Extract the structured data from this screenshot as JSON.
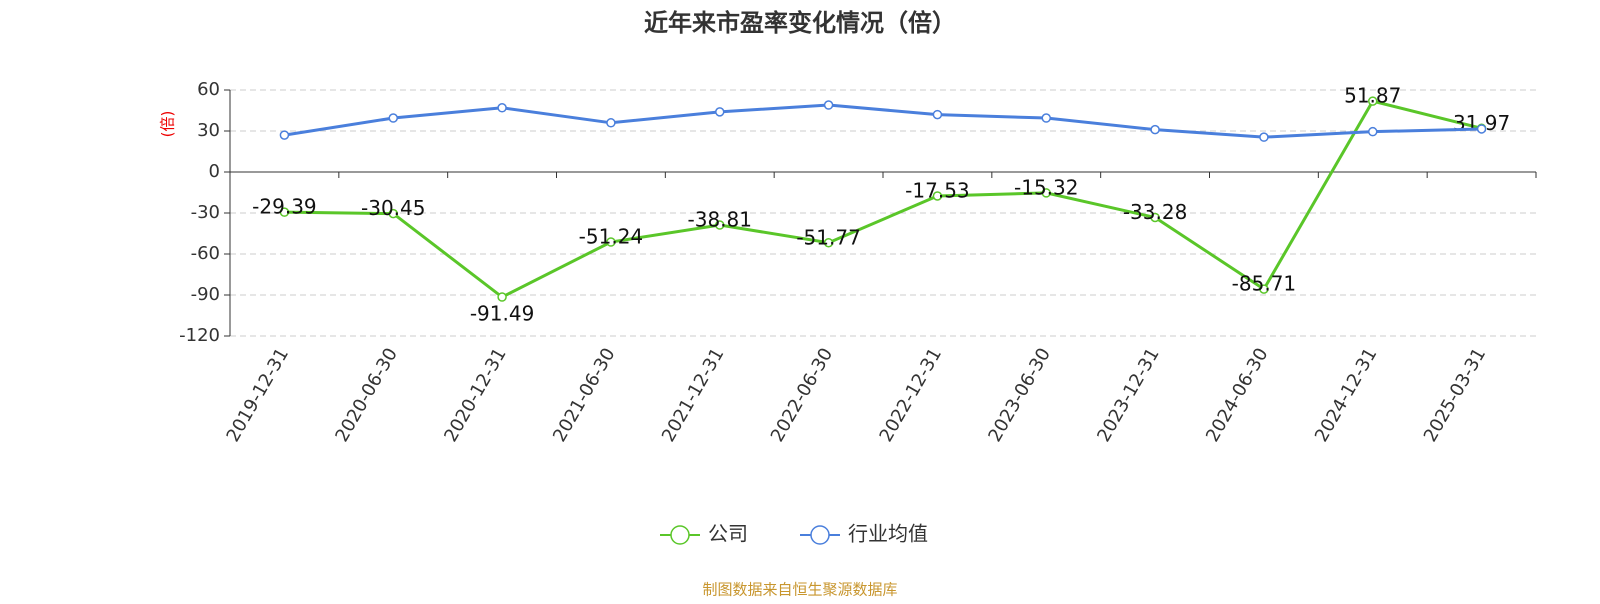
{
  "chart_data": {
    "type": "line",
    "title": "近年来市盈率变化情况（倍）",
    "y_label": "(倍)",
    "source": "制图数据来自恒生聚源数据库",
    "categories": [
      "2019-12-31",
      "2020-06-30",
      "2020-12-31",
      "2021-06-30",
      "2021-12-31",
      "2022-06-30",
      "2022-12-31",
      "2023-06-30",
      "2023-12-31",
      "2024-06-30",
      "2024-12-31",
      "2025-03-31"
    ],
    "series": [
      {
        "name": "公司",
        "color": "#5ac629",
        "values": [
          -29.39,
          -30.45,
          -91.49,
          -51.24,
          -38.81,
          -51.77,
          -17.53,
          -15.32,
          -33.28,
          -85.71,
          51.87,
          31.97
        ],
        "data_labels": true
      },
      {
        "name": "行业均值",
        "color": "#4a7fdc",
        "values": [
          27,
          39.5,
          47,
          36,
          44,
          49,
          42,
          39.5,
          31,
          25.5,
          29.5,
          31.5
        ],
        "data_labels": false
      }
    ],
    "ylim": [
      -120,
      60
    ],
    "yticks": [
      -120,
      -90,
      -60,
      -30,
      0,
      30,
      60
    ],
    "grid": true
  }
}
